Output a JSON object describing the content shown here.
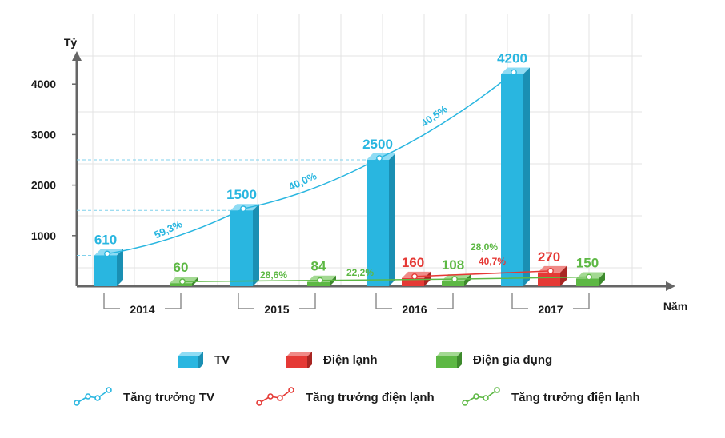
{
  "chart_data": {
    "type": "bar",
    "ylabel": "Tỷ",
    "xlabel": "Năm",
    "categories": [
      "2014",
      "2015",
      "2016",
      "2017"
    ],
    "yticks": [
      "1000",
      "2000",
      "3000",
      "4000"
    ],
    "ylim": [
      0,
      4700
    ],
    "grid": true,
    "series": [
      {
        "name": "TV",
        "values": [
          610,
          1500,
          2500,
          4200
        ],
        "labels": [
          "610",
          "1500",
          "2500",
          "4200"
        ],
        "color": "#29B6E0"
      },
      {
        "name": "Điện lạnh",
        "values": [
          null,
          null,
          160,
          270
        ],
        "labels": [
          "",
          "",
          "160",
          "270"
        ],
        "color": "#E53935"
      },
      {
        "name": "Điện gia dụng",
        "values": [
          60,
          84,
          108,
          150
        ],
        "labels": [
          "60",
          "84",
          "108",
          "150"
        ],
        "color": "#5DB844"
      }
    ],
    "growth_annotations": {
      "tv": [
        "59,3%",
        "40,0%",
        "40,5%"
      ],
      "dien_lanh": [
        "40,7%"
      ],
      "dien_gia_dung": [
        "28,6%",
        "22,2%",
        "28,0%"
      ]
    }
  },
  "legend": {
    "tv": "TV",
    "dien_lanh": "Điện lạnh",
    "dien_gia_dung": "Điện gia dụng",
    "growth_tv": "Tăng trưởng TV",
    "growth_dien_lanh": "Tăng trưởng điện lạnh",
    "growth_dien_gia_dung": "Tăng trưởng điện lạnh"
  },
  "colors": {
    "tv": "#29B6E0",
    "dien_lanh": "#E53935",
    "dien_gia_dung": "#5DB844",
    "axis": "#666666",
    "grid": "#e3e3e3"
  }
}
